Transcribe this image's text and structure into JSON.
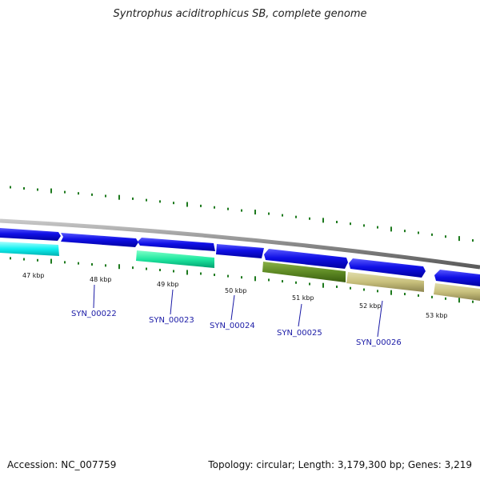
{
  "title": "Syntrophus aciditrophicus SB, complete genome",
  "footer": {
    "accession": "Accession: NC_007759",
    "topology": "Topology: circular; Length: 3,179,300 bp; Genes: 3,219"
  },
  "colors": {
    "backbone": "#8a8a8a",
    "forward_gene": "#1010e0",
    "tick": "#1e7a1e",
    "label": "#1a1aa6"
  },
  "kbp_ticks": [
    "47 kbp",
    "48 kbp",
    "49 kbp",
    "50 kbp",
    "51 kbp",
    "52 kbp",
    "53 kbp"
  ],
  "gene_labels": [
    "SYN_00022",
    "SYN_00023",
    "SYN_00024",
    "SYN_00025",
    "SYN_00026"
  ]
}
